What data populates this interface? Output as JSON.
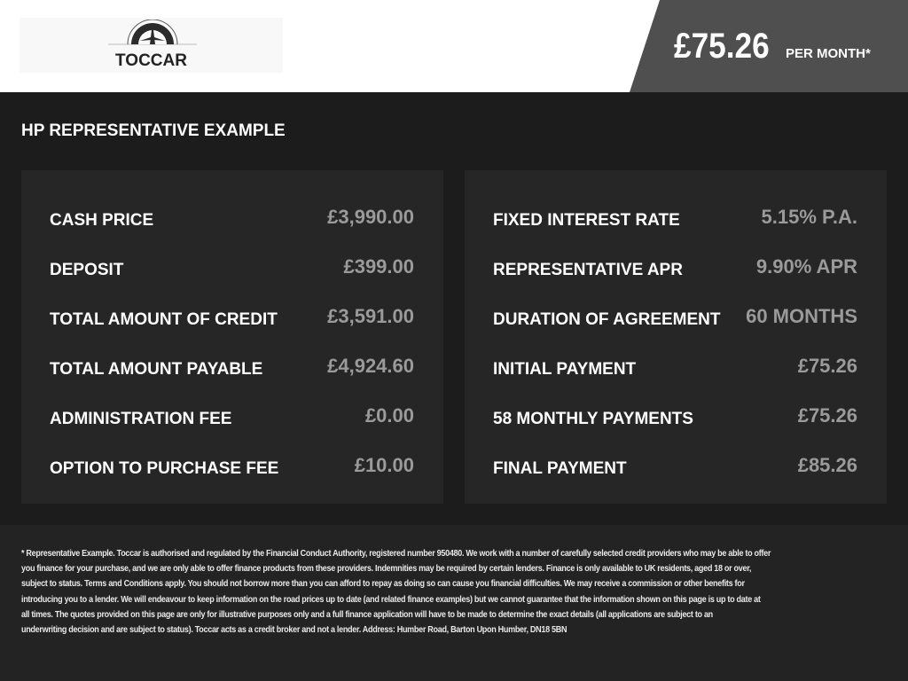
{
  "header": {
    "logo_text": "TOCCAR",
    "price": "£75.26",
    "per_month": "PER MONTH*"
  },
  "title": "HP REPRESENTATIVE EXAMPLE",
  "left": [
    {
      "label": "CASH PRICE",
      "value": "£3,990.00"
    },
    {
      "label": "DEPOSIT",
      "value": "£399.00"
    },
    {
      "label": "TOTAL AMOUNT OF CREDIT",
      "value": "£3,591.00"
    },
    {
      "label": "TOTAL AMOUNT PAYABLE",
      "value": "£4,924.60"
    },
    {
      "label": "ADMINISTRATION FEE",
      "value": "£0.00"
    },
    {
      "label": "OPTION TO PURCHASE FEE",
      "value": "£10.00"
    }
  ],
  "right": [
    {
      "label": "FIXED INTEREST RATE",
      "value": "5.15% P.A."
    },
    {
      "label": "REPRESENTATIVE APR",
      "value": "9.90% APR"
    },
    {
      "label": "DURATION OF AGREEMENT",
      "value": "60 MONTHS"
    },
    {
      "label": "INITIAL PAYMENT",
      "value": "£75.26"
    },
    {
      "label": "58 MONTHLY PAYMENTS",
      "value": "£75.26"
    },
    {
      "label": "FINAL PAYMENT",
      "value": "£85.26"
    }
  ],
  "footer_lines": [
    "* Representative Example. Toccar is authorised and regulated by the Financial Conduct Authority, registered number 950480. We work with a number of carefully selected credit providers who may be able to offer",
    "you finance for your purchase, and we are only able to offer finance products from these providers. Indemnities may be required by certain lenders. Finance is only available to UK residents, aged 18 or over,",
    "subject to status. Terms and Conditions apply. You should not borrow more than you can afford to repay as doing so can cause you financial difficulties. We may receive a commission or other benefits for",
    "introducing you to a lender. We will endeavour to keep information on the road prices up to date (and related finance examples) but we cannot guarantee that the information shown on this page is up to date at",
    "all times. The quotes provided on this page are only for illustrative purposes only and a full finance application will have to be made to determine the exact details (all applications are subject to an",
    "underwriting decision and are subject to status). Toccar acts as a credit broker and not a lender. Address: Humber Road, Barton Upon Humber, DN18 5BN"
  ]
}
